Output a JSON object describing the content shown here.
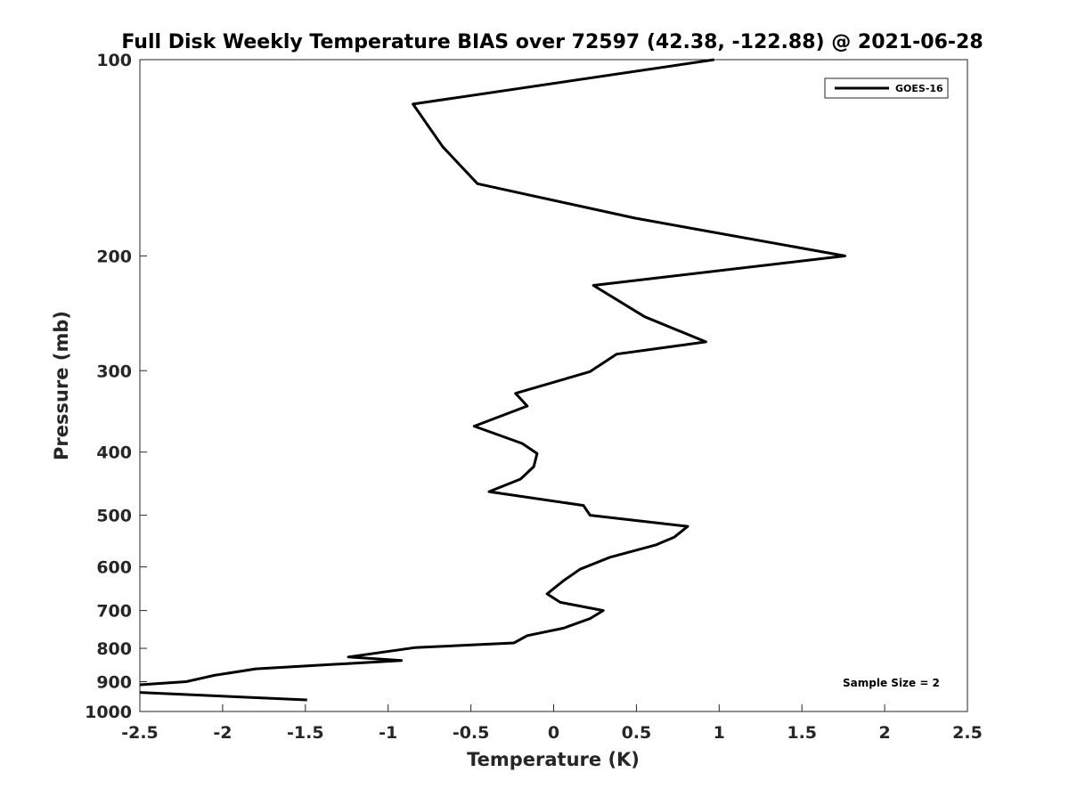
{
  "chart_data": {
    "type": "line",
    "title": "Full Disk Weekly Temperature BIAS over 72597 (42.38, -122.88) @ 2021-06-28",
    "xlabel": "Temperature (K)",
    "ylabel": "Pressure (mb)",
    "xlim": [
      -2.5,
      2.5
    ],
    "ylim": [
      100,
      1000
    ],
    "y_scale": "log",
    "y_direction": "reversed",
    "x_ticks": [
      -2.5,
      -2,
      -1.5,
      -1,
      -0.5,
      0,
      0.5,
      1,
      1.5,
      2,
      2.5
    ],
    "x_tick_labels": [
      "-2.5",
      "-2",
      "-1.5",
      "-1",
      "-0.5",
      "0",
      "0.5",
      "1",
      "1.5",
      "2",
      "2.5"
    ],
    "y_ticks": [
      100,
      200,
      300,
      400,
      500,
      600,
      700,
      800,
      900,
      1000
    ],
    "y_tick_labels": [
      "100",
      "200",
      "300",
      "400",
      "500",
      "600",
      "700",
      "800",
      "900",
      "1000"
    ],
    "grid": false,
    "legend_position": "top-right",
    "series": [
      {
        "name": "GOES-16",
        "color": "#000000",
        "x": [
          0.97,
          -0.85,
          -0.67,
          -0.46,
          0.49,
          1.76,
          0.24,
          0.55,
          0.92,
          0.38,
          0.22,
          -0.23,
          -0.16,
          -0.48,
          -0.19,
          -0.1,
          -0.12,
          -0.2,
          -0.39,
          0.18,
          0.22,
          0.81,
          0.73,
          0.62,
          0.34,
          0.16,
          0.06,
          -0.04,
          0.04,
          0.3,
          0.22,
          0.06,
          -0.16,
          -0.24,
          -0.84,
          -1.24,
          -0.92,
          -1.8,
          -2.05,
          -2.22,
          -2.5,
          null,
          -2.5,
          -1.49
        ],
        "y": [
          100,
          117,
          136,
          155,
          175,
          200,
          222,
          248,
          271,
          283,
          301,
          325,
          340,
          365,
          388,
          402,
          421,
          440,
          460,
          483,
          500,
          520,
          540,
          555,
          580,
          605,
          630,
          660,
          680,
          700,
          720,
          745,
          765,
          785,
          798,
          825,
          835,
          860,
          880,
          900,
          910,
          null,
          935,
          960
        ]
      }
    ],
    "annotations": [
      "Sample Size = 2"
    ]
  }
}
